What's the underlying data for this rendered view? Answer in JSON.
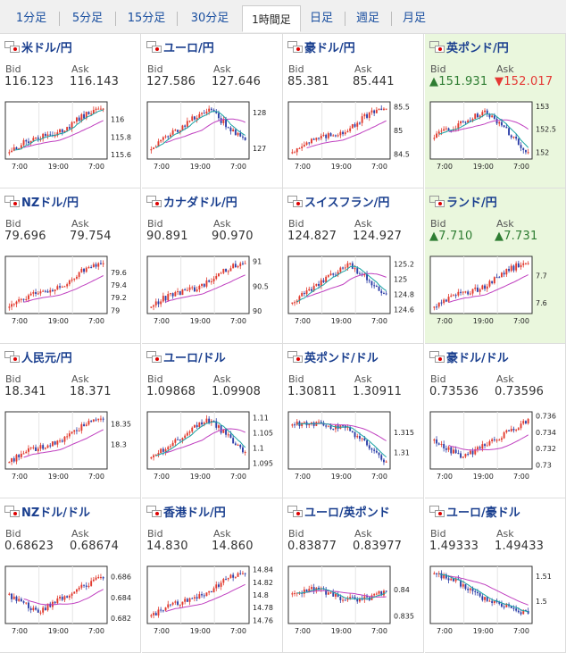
{
  "tabs": [
    {
      "label": "1分足",
      "active": false
    },
    {
      "label": "5分足",
      "active": false
    },
    {
      "label": "15分足",
      "active": false
    },
    {
      "label": "30分足",
      "active": false
    },
    {
      "label": "1時間足",
      "active": true
    },
    {
      "label": "日足",
      "active": false
    },
    {
      "label": "週足",
      "active": false
    },
    {
      "label": "月足",
      "active": false
    }
  ],
  "labels": {
    "bid": "Bid",
    "ask": "Ask"
  },
  "colors": {
    "up_candle": "#e23a2e",
    "down_candle": "#2d3fa8",
    "ma_short": "#19a3a3",
    "ma_long": "#c040c0",
    "highlight_bg": "#eaf7dd",
    "link_blue": "#1a3f8f"
  },
  "chart_x_ticks": [
    "7:00",
    "19:00",
    "7:00"
  ],
  "pairs": [
    {
      "name": "米ドル/円",
      "bid": "116.123",
      "ask": "116.143",
      "highlight": false,
      "bid_dir": "",
      "ask_dir": "",
      "flag": "us-jp",
      "y_ticks": [
        "116",
        "115.8",
        "115.6"
      ],
      "chart_data": {
        "type": "candlestick",
        "x_ticks": [
          "7:00",
          "19:00",
          "7:00"
        ],
        "y_range": [
          115.55,
          116.2
        ],
        "start": 115.75,
        "end": 116.05,
        "trend": "up",
        "ma_short": true
      }
    },
    {
      "name": "ユーロ/円",
      "bid": "127.586",
      "ask": "127.646",
      "highlight": false,
      "bid_dir": "",
      "ask_dir": "",
      "flag": "eu-jp",
      "y_ticks": [
        "128",
        "127"
      ],
      "chart_data": {
        "type": "candlestick",
        "x_ticks": [
          "7:00",
          "19:00",
          "7:00"
        ],
        "y_range": [
          126.7,
          128.3
        ],
        "start": 127.4,
        "end": 127.6,
        "trend": "peak-then-down",
        "ma_short": true
      }
    },
    {
      "name": "豪ドル/円",
      "bid": "85.381",
      "ask": "85.441",
      "highlight": false,
      "bid_dir": "",
      "ask_dir": "",
      "flag": "au-jp",
      "y_ticks": [
        "85.5",
        "85",
        "84.5"
      ],
      "chart_data": {
        "type": "candlestick",
        "x_ticks": [
          "7:00",
          "19:00",
          "7:00"
        ],
        "y_range": [
          84.4,
          85.6
        ],
        "start": 84.8,
        "end": 85.45,
        "trend": "up",
        "ma_short": false
      }
    },
    {
      "name": "英ポンド/円",
      "bid": "151.931",
      "ask": "152.017",
      "highlight": true,
      "bid_dir": "up",
      "ask_dir": "down",
      "flag": "gb-jp",
      "bid_arrow": "▲",
      "ask_arrow": "▼",
      "y_ticks": [
        "153",
        "152.5",
        "152"
      ],
      "chart_data": {
        "type": "candlestick",
        "x_ticks": [
          "7:00",
          "19:00",
          "7:00"
        ],
        "y_range": [
          151.85,
          153.1
        ],
        "start": 152.3,
        "end": 151.95,
        "trend": "up-then-down",
        "ma_short": true
      }
    },
    {
      "name": "NZドル/円",
      "bid": "79.696",
      "ask": "79.754",
      "highlight": false,
      "bid_dir": "",
      "ask_dir": "",
      "flag": "nz-jp",
      "y_ticks": [
        "79.6",
        "79.4",
        "79.2",
        "79"
      ],
      "chart_data": {
        "type": "candlestick",
        "x_ticks": [
          "7:00",
          "19:00",
          "7:00"
        ],
        "y_range": [
          78.95,
          79.85
        ],
        "start": 79.2,
        "end": 79.7,
        "trend": "up",
        "ma_short": false
      }
    },
    {
      "name": "カナダドル/円",
      "bid": "90.891",
      "ask": "90.970",
      "highlight": false,
      "bid_dir": "",
      "ask_dir": "",
      "flag": "ca-jp",
      "y_ticks": [
        "91",
        "90.5",
        "90"
      ],
      "chart_data": {
        "type": "candlestick",
        "x_ticks": [
          "7:00",
          "19:00",
          "7:00"
        ],
        "y_range": [
          89.95,
          91.1
        ],
        "start": 90.35,
        "end": 90.95,
        "trend": "up",
        "ma_short": false
      }
    },
    {
      "name": "スイスフラン/円",
      "bid": "124.827",
      "ask": "124.927",
      "highlight": false,
      "bid_dir": "",
      "ask_dir": "",
      "flag": "ch-jp",
      "y_ticks": [
        "125.2",
        "125",
        "124.8",
        "124.6"
      ],
      "chart_data": {
        "type": "candlestick",
        "x_ticks": [
          "7:00",
          "19:00",
          "7:00"
        ],
        "y_range": [
          124.55,
          125.3
        ],
        "start": 124.9,
        "end": 124.85,
        "trend": "peak-then-down",
        "ma_short": true
      }
    },
    {
      "name": "ランド/円",
      "bid": "7.710",
      "ask": "7.731",
      "highlight": true,
      "bid_dir": "up",
      "ask_dir": "up",
      "flag": "za-jp",
      "bid_arrow": "▲",
      "ask_arrow": "▲",
      "y_ticks": [
        "7.7",
        "7.6"
      ],
      "chart_data": {
        "type": "candlestick",
        "x_ticks": [
          "7:00",
          "19:00",
          "7:00"
        ],
        "y_range": [
          7.56,
          7.77
        ],
        "start": 7.62,
        "end": 7.72,
        "trend": "up",
        "ma_short": false
      }
    },
    {
      "name": "人民元/円",
      "bid": "18.341",
      "ask": "18.371",
      "highlight": false,
      "bid_dir": "",
      "ask_dir": "",
      "flag": "cn-jp",
      "y_ticks": [
        "18.35",
        "18.3"
      ],
      "chart_data": {
        "type": "candlestick",
        "x_ticks": [
          "7:00",
          "19:00",
          "7:00"
        ],
        "y_range": [
          18.24,
          18.38
        ],
        "start": 18.29,
        "end": 18.34,
        "trend": "up",
        "ma_short": false
      }
    },
    {
      "name": "ユーロ/ドル",
      "bid": "1.09868",
      "ask": "1.09908",
      "highlight": false,
      "bid_dir": "",
      "ask_dir": "",
      "flag": "eu-us",
      "y_ticks": [
        "1.11",
        "1.105",
        "1.1",
        "1.095"
      ],
      "chart_data": {
        "type": "candlestick",
        "x_ticks": [
          "7:00",
          "19:00",
          "7:00"
        ],
        "y_range": [
          1.093,
          1.112
        ],
        "start": 1.104,
        "end": 1.099,
        "trend": "peak-then-down",
        "ma_short": true
      }
    },
    {
      "name": "英ポンド/ドル",
      "bid": "1.30811",
      "ask": "1.30911",
      "highlight": false,
      "bid_dir": "",
      "ask_dir": "",
      "flag": "gb-us",
      "y_ticks": [
        "1.315",
        "1.31"
      ],
      "chart_data": {
        "type": "candlestick",
        "x_ticks": [
          "7:00",
          "19:00",
          "7:00"
        ],
        "y_range": [
          1.306,
          1.32
        ],
        "start": 1.316,
        "end": 1.308,
        "trend": "flat-then-down",
        "ma_short": true
      }
    },
    {
      "name": "豪ドル/ドル",
      "bid": "0.73536",
      "ask": "0.73596",
      "highlight": false,
      "bid_dir": "",
      "ask_dir": "",
      "flag": "au-us",
      "y_ticks": [
        "0.736",
        "0.734",
        "0.732",
        "0.73"
      ],
      "chart_data": {
        "type": "candlestick",
        "x_ticks": [
          "7:00",
          "19:00",
          "7:00"
        ],
        "y_range": [
          0.7295,
          0.7365
        ],
        "start": 0.7325,
        "end": 0.7355,
        "trend": "dip-then-up",
        "ma_short": false
      }
    },
    {
      "name": "NZドル/ドル",
      "bid": "0.68623",
      "ask": "0.68674",
      "highlight": false,
      "bid_dir": "",
      "ask_dir": "",
      "flag": "nz-us",
      "y_ticks": [
        "0.686",
        "0.684",
        "0.682"
      ],
      "chart_data": {
        "type": "candlestick",
        "x_ticks": [
          "7:00",
          "19:00",
          "7:00"
        ],
        "y_range": [
          0.6815,
          0.687
        ],
        "start": 0.6835,
        "end": 0.6862,
        "trend": "dip-then-up",
        "ma_short": false
      }
    },
    {
      "name": "香港ドル/円",
      "bid": "14.830",
      "ask": "14.860",
      "highlight": false,
      "bid_dir": "",
      "ask_dir": "",
      "flag": "hk-jp",
      "y_ticks": [
        "14.84",
        "14.82",
        "14.8",
        "14.78",
        "14.76"
      ],
      "chart_data": {
        "type": "candlestick",
        "x_ticks": [
          "7:00",
          "19:00",
          "7:00"
        ],
        "y_range": [
          14.755,
          14.845
        ],
        "start": 14.785,
        "end": 14.83,
        "trend": "up",
        "ma_short": false
      }
    },
    {
      "name": "ユーロ/英ポンド",
      "bid": "0.83877",
      "ask": "0.83977",
      "highlight": false,
      "bid_dir": "",
      "ask_dir": "",
      "flag": "eu-gb",
      "y_ticks": [
        "0.84",
        "0.835"
      ],
      "chart_data": {
        "type": "candlestick",
        "x_ticks": [
          "7:00",
          "19:00",
          "7:00"
        ],
        "y_range": [
          0.8335,
          0.8445
        ],
        "start": 0.8395,
        "end": 0.8388,
        "trend": "flat",
        "ma_short": true
      }
    },
    {
      "name": "ユーロ/豪ドル",
      "bid": "1.49333",
      "ask": "1.49433",
      "highlight": false,
      "bid_dir": "",
      "ask_dir": "",
      "flag": "eu-au",
      "y_ticks": [
        "1.51",
        "1.5"
      ],
      "chart_data": {
        "type": "candlestick",
        "x_ticks": [
          "7:00",
          "19:00",
          "7:00"
        ],
        "y_range": [
          1.491,
          1.514
        ],
        "start": 1.508,
        "end": 1.494,
        "trend": "down",
        "ma_short": true
      }
    }
  ]
}
